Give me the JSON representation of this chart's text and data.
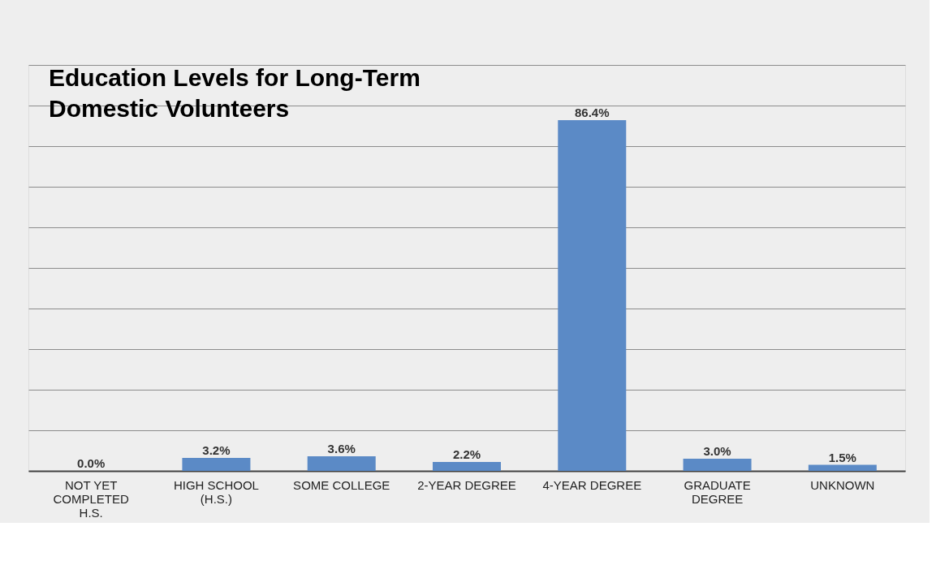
{
  "chart_data": {
    "type": "bar",
    "title": "Education Levels for Long-Term Domestic Volunteers",
    "categories": [
      "NOT YET COMPLETED H.S.",
      "HIGH SCHOOL (H.S.)",
      "SOME COLLEGE",
      "2-YEAR DEGREE",
      "4-YEAR DEGREE",
      "GRADUATE DEGREE",
      "UNKNOWN"
    ],
    "values": [
      0.0,
      3.2,
      3.6,
      2.2,
      86.4,
      3.0,
      1.5
    ],
    "value_labels": [
      "0.0%",
      "3.2%",
      "3.6%",
      "2.2%",
      "86.4%",
      "3.0%",
      "1.5%"
    ],
    "color": "#5b8ac6",
    "ylim": [
      0,
      100
    ],
    "yticks": [
      {
        "value": 0,
        "label": null
      },
      {
        "value": 10,
        "label": null
      },
      {
        "value": 20,
        "label": null
      },
      {
        "value": 30,
        "label": null
      },
      {
        "value": 40,
        "label": null
      },
      {
        "value": 50,
        "label": null
      },
      {
        "value": 60,
        "label": null
      },
      {
        "value": 70,
        "label": null
      },
      {
        "value": 80,
        "label": null
      },
      {
        "value": 90,
        "label": null
      },
      {
        "value": 100,
        "label": null
      }
    ],
    "tick_labels": "x",
    "grid": "y"
  }
}
